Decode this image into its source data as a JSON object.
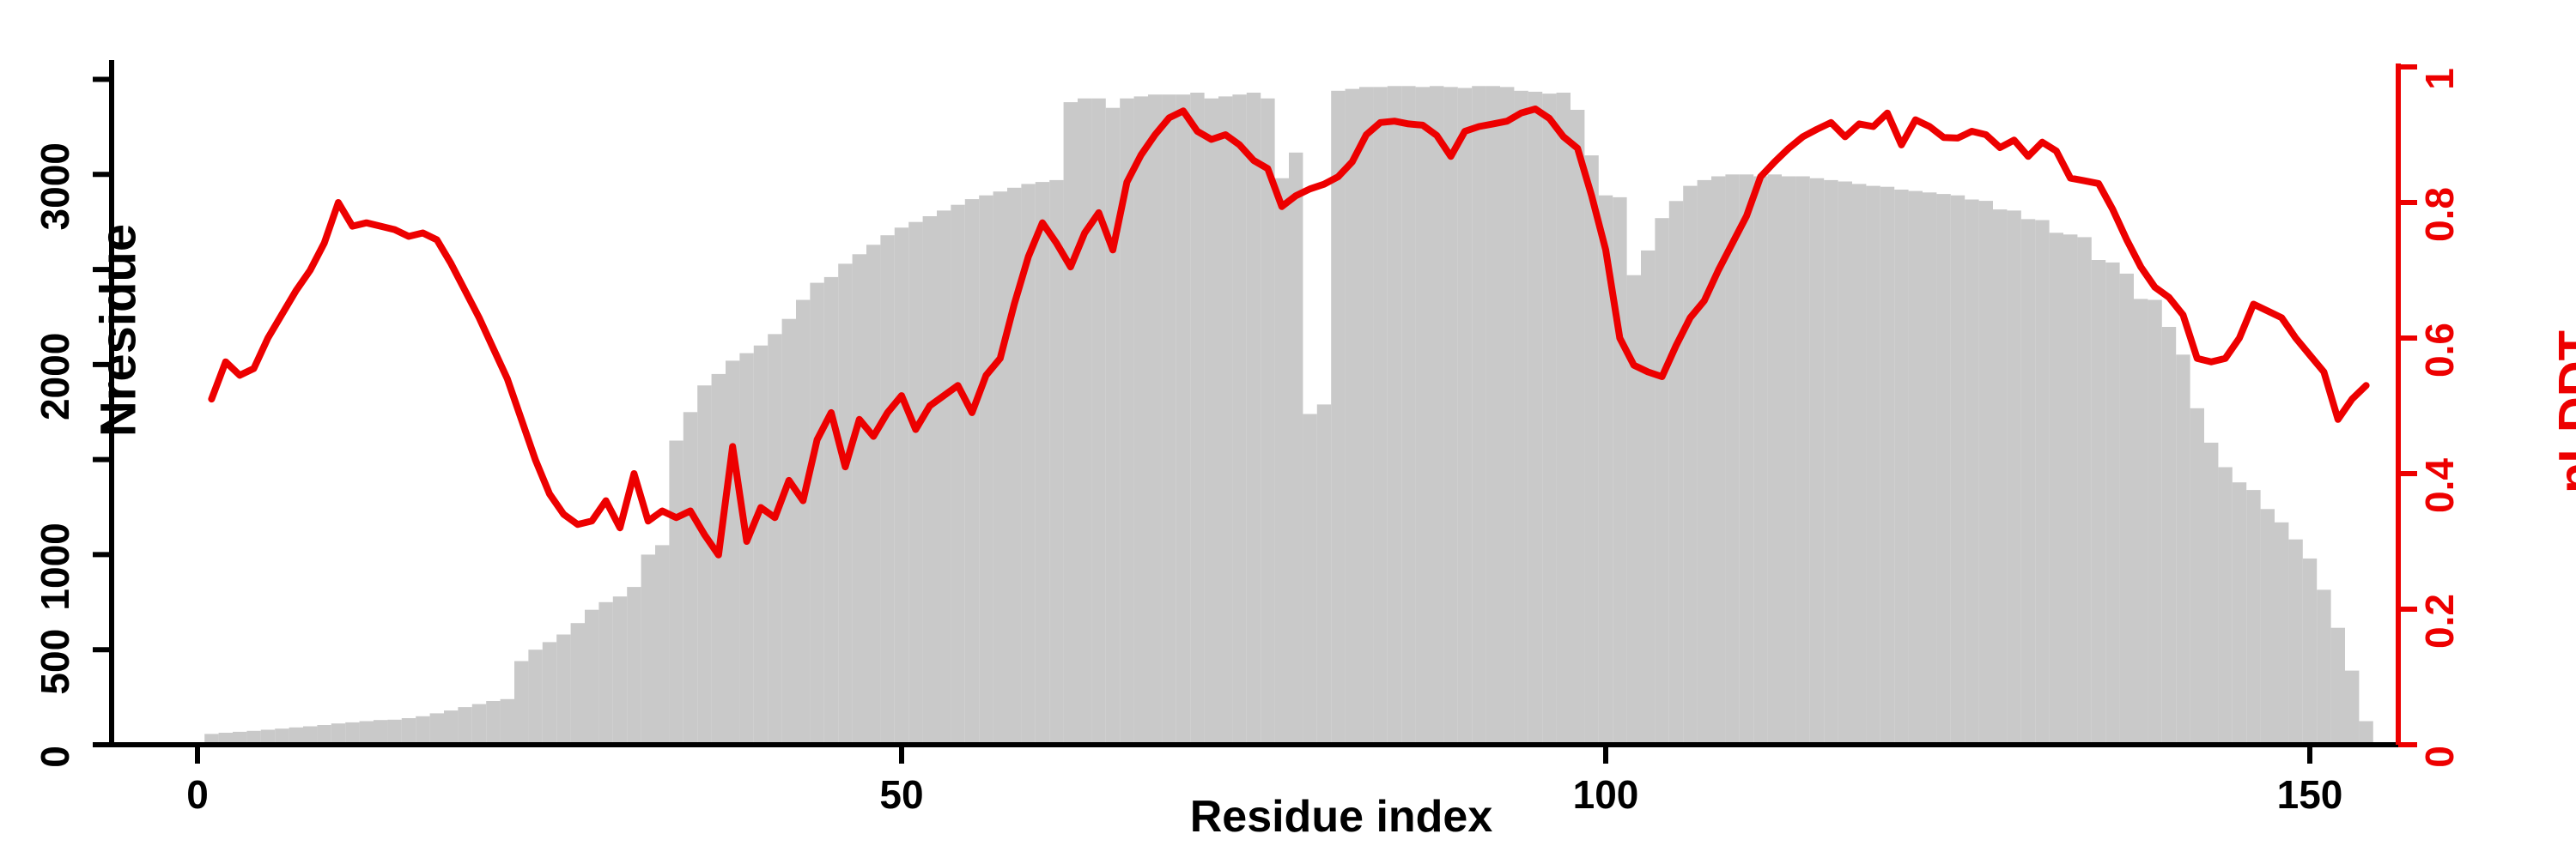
{
  "chart_data": {
    "type": "bar",
    "subtype": "dual-axis bar+line, R base-graphics style",
    "title": "",
    "xlabel": "Residue index",
    "ylabel_left": "Nresidue",
    "ylabel_right": "pLDDT",
    "x_axis": {
      "min": 0,
      "max": 154,
      "ticks": [
        0,
        50,
        100,
        150
      ],
      "tick_labels": [
        "0",
        "50",
        "100",
        "150"
      ]
    },
    "y_axis_left": {
      "min": 0,
      "max": 3500,
      "ticks": [
        0,
        500,
        1000,
        1500,
        2000,
        2500,
        3000,
        3500
      ],
      "tick_labels": [
        "0",
        "500",
        "1000",
        "",
        "2000",
        "",
        "3000",
        ""
      ],
      "label_rotation": "vertical"
    },
    "y_axis_right": {
      "min": 0,
      "max": 1,
      "ticks": [
        0,
        0.2,
        0.4,
        0.6,
        0.8,
        1
      ],
      "tick_labels": [
        "0",
        "0.2",
        "0.4",
        "0.6",
        "0.8",
        "1"
      ],
      "label_rotation": "vertical"
    },
    "grid": "off",
    "legend": "none",
    "colors": {
      "bars": "#c9c9c9",
      "line": "#ed0000",
      "axis_left": "#000000",
      "axis_bottom": "#000000",
      "axis_right": "#ed0000",
      "background": "#ffffff"
    },
    "x": [
      1,
      2,
      3,
      4,
      5,
      6,
      7,
      8,
      9,
      10,
      11,
      12,
      13,
      14,
      15,
      16,
      17,
      18,
      19,
      20,
      21,
      22,
      23,
      24,
      25,
      26,
      27,
      28,
      29,
      30,
      31,
      32,
      33,
      34,
      35,
      36,
      37,
      38,
      39,
      40,
      41,
      42,
      43,
      44,
      45,
      46,
      47,
      48,
      49,
      50,
      51,
      52,
      53,
      54,
      55,
      56,
      57,
      58,
      59,
      60,
      61,
      62,
      63,
      64,
      65,
      66,
      67,
      68,
      69,
      70,
      71,
      72,
      73,
      74,
      75,
      76,
      77,
      78,
      79,
      80,
      81,
      82,
      83,
      84,
      85,
      86,
      87,
      88,
      89,
      90,
      91,
      92,
      93,
      94,
      95,
      96,
      97,
      98,
      99,
      100,
      101,
      102,
      103,
      104,
      105,
      106,
      107,
      108,
      109,
      110,
      111,
      112,
      113,
      114,
      115,
      116,
      117,
      118,
      119,
      120,
      121,
      122,
      123,
      124,
      125,
      126,
      127,
      128,
      129,
      130,
      131,
      132,
      133,
      134,
      135,
      136,
      137,
      138,
      139,
      140,
      141,
      142,
      143,
      144,
      145,
      146,
      147,
      148,
      149,
      150,
      151,
      152,
      153,
      154
    ],
    "series": [
      {
        "name": "Nresidue",
        "type": "bar",
        "axis": "left",
        "color": "#c9c9c9",
        "values": [
          57,
          63,
          68,
          73,
          79,
          85,
          91,
          97,
          104,
          112,
          118,
          124,
          130,
          132,
          140,
          150,
          165,
          180,
          198,
          214,
          230,
          240,
          440,
          500,
          540,
          580,
          640,
          710,
          750,
          780,
          830,
          1000,
          1050,
          1600,
          1750,
          1890,
          1950,
          2020,
          2060,
          2100,
          2160,
          2240,
          2340,
          2430,
          2460,
          2530,
          2580,
          2630,
          2680,
          2720,
          2750,
          2780,
          2810,
          2840,
          2870,
          2890,
          2910,
          2930,
          2950,
          2960,
          2970,
          3380,
          3400,
          3400,
          3350,
          3400,
          3410,
          3420,
          3420,
          3420,
          3430,
          3400,
          3410,
          3420,
          3430,
          3400,
          2980,
          3115,
          1740,
          1790,
          3440,
          3450,
          3460,
          3460,
          3465,
          3465,
          3460,
          3465,
          3460,
          3455,
          3465,
          3465,
          3460,
          3440,
          3435,
          3425,
          3430,
          3340,
          3100,
          2890,
          2880,
          2470,
          2600,
          2770,
          2860,
          2940,
          2970,
          2990,
          3000,
          3000,
          2990,
          3000,
          2990,
          2990,
          2980,
          2970,
          2963,
          2950,
          2940,
          2935,
          2920,
          2913,
          2905,
          2897,
          2890,
          2868,
          2861,
          2816,
          2810,
          2765,
          2760,
          2693,
          2684,
          2670,
          2550,
          2537,
          2478,
          2345,
          2340,
          2198,
          2052,
          1770,
          1589,
          1460,
          1380,
          1340,
          1240,
          1170,
          1080,
          980,
          815,
          615,
          390,
          124
        ]
      },
      {
        "name": "pLDDT",
        "type": "line",
        "axis": "right",
        "color": "#ed0000",
        "values": [
          0.51,
          0.565,
          0.545,
          0.555,
          0.6,
          0.635,
          0.67,
          0.7,
          0.74,
          0.8,
          0.765,
          0.77,
          0.765,
          0.76,
          0.75,
          0.755,
          0.745,
          0.71,
          0.67,
          0.63,
          0.585,
          0.54,
          0.48,
          0.42,
          0.37,
          0.34,
          0.325,
          0.33,
          0.36,
          0.32,
          0.4,
          0.33,
          0.345,
          0.335,
          0.345,
          0.31,
          0.28,
          0.44,
          0.3,
          0.35,
          0.335,
          0.39,
          0.36,
          0.45,
          0.49,
          0.41,
          0.48,
          0.455,
          0.49,
          0.515,
          0.465,
          0.5,
          0.515,
          0.53,
          0.49,
          0.545,
          0.57,
          0.65,
          0.72,
          0.77,
          0.74,
          0.705,
          0.755,
          0.785,
          0.73,
          0.83,
          0.87,
          0.9,
          0.925,
          0.935,
          0.905,
          0.893,
          0.9,
          0.885,
          0.862,
          0.85,
          0.794,
          0.81,
          0.82,
          0.827,
          0.838,
          0.86,
          0.9,
          0.918,
          0.92,
          0.916,
          0.914,
          0.899,
          0.868,
          0.905,
          0.912,
          0.916,
          0.92,
          0.932,
          0.938,
          0.924,
          0.897,
          0.88,
          0.81,
          0.73,
          0.6,
          0.56,
          0.55,
          0.543,
          0.589,
          0.63,
          0.655,
          0.7,
          0.74,
          0.78,
          0.838,
          0.86,
          0.88,
          0.897,
          0.908,
          0.918,
          0.897,
          0.916,
          0.912,
          0.932,
          0.885,
          0.922,
          0.912,
          0.896,
          0.895,
          0.905,
          0.9,
          0.881,
          0.892,
          0.868,
          0.889,
          0.876,
          0.836,
          0.832,
          0.828,
          0.79,
          0.745,
          0.705,
          0.675,
          0.66,
          0.634,
          0.57,
          0.565,
          0.57,
          0.6,
          0.65,
          0.64,
          0.63,
          0.6,
          0.575,
          0.55,
          0.48,
          0.51,
          0.53
        ]
      }
    ]
  }
}
